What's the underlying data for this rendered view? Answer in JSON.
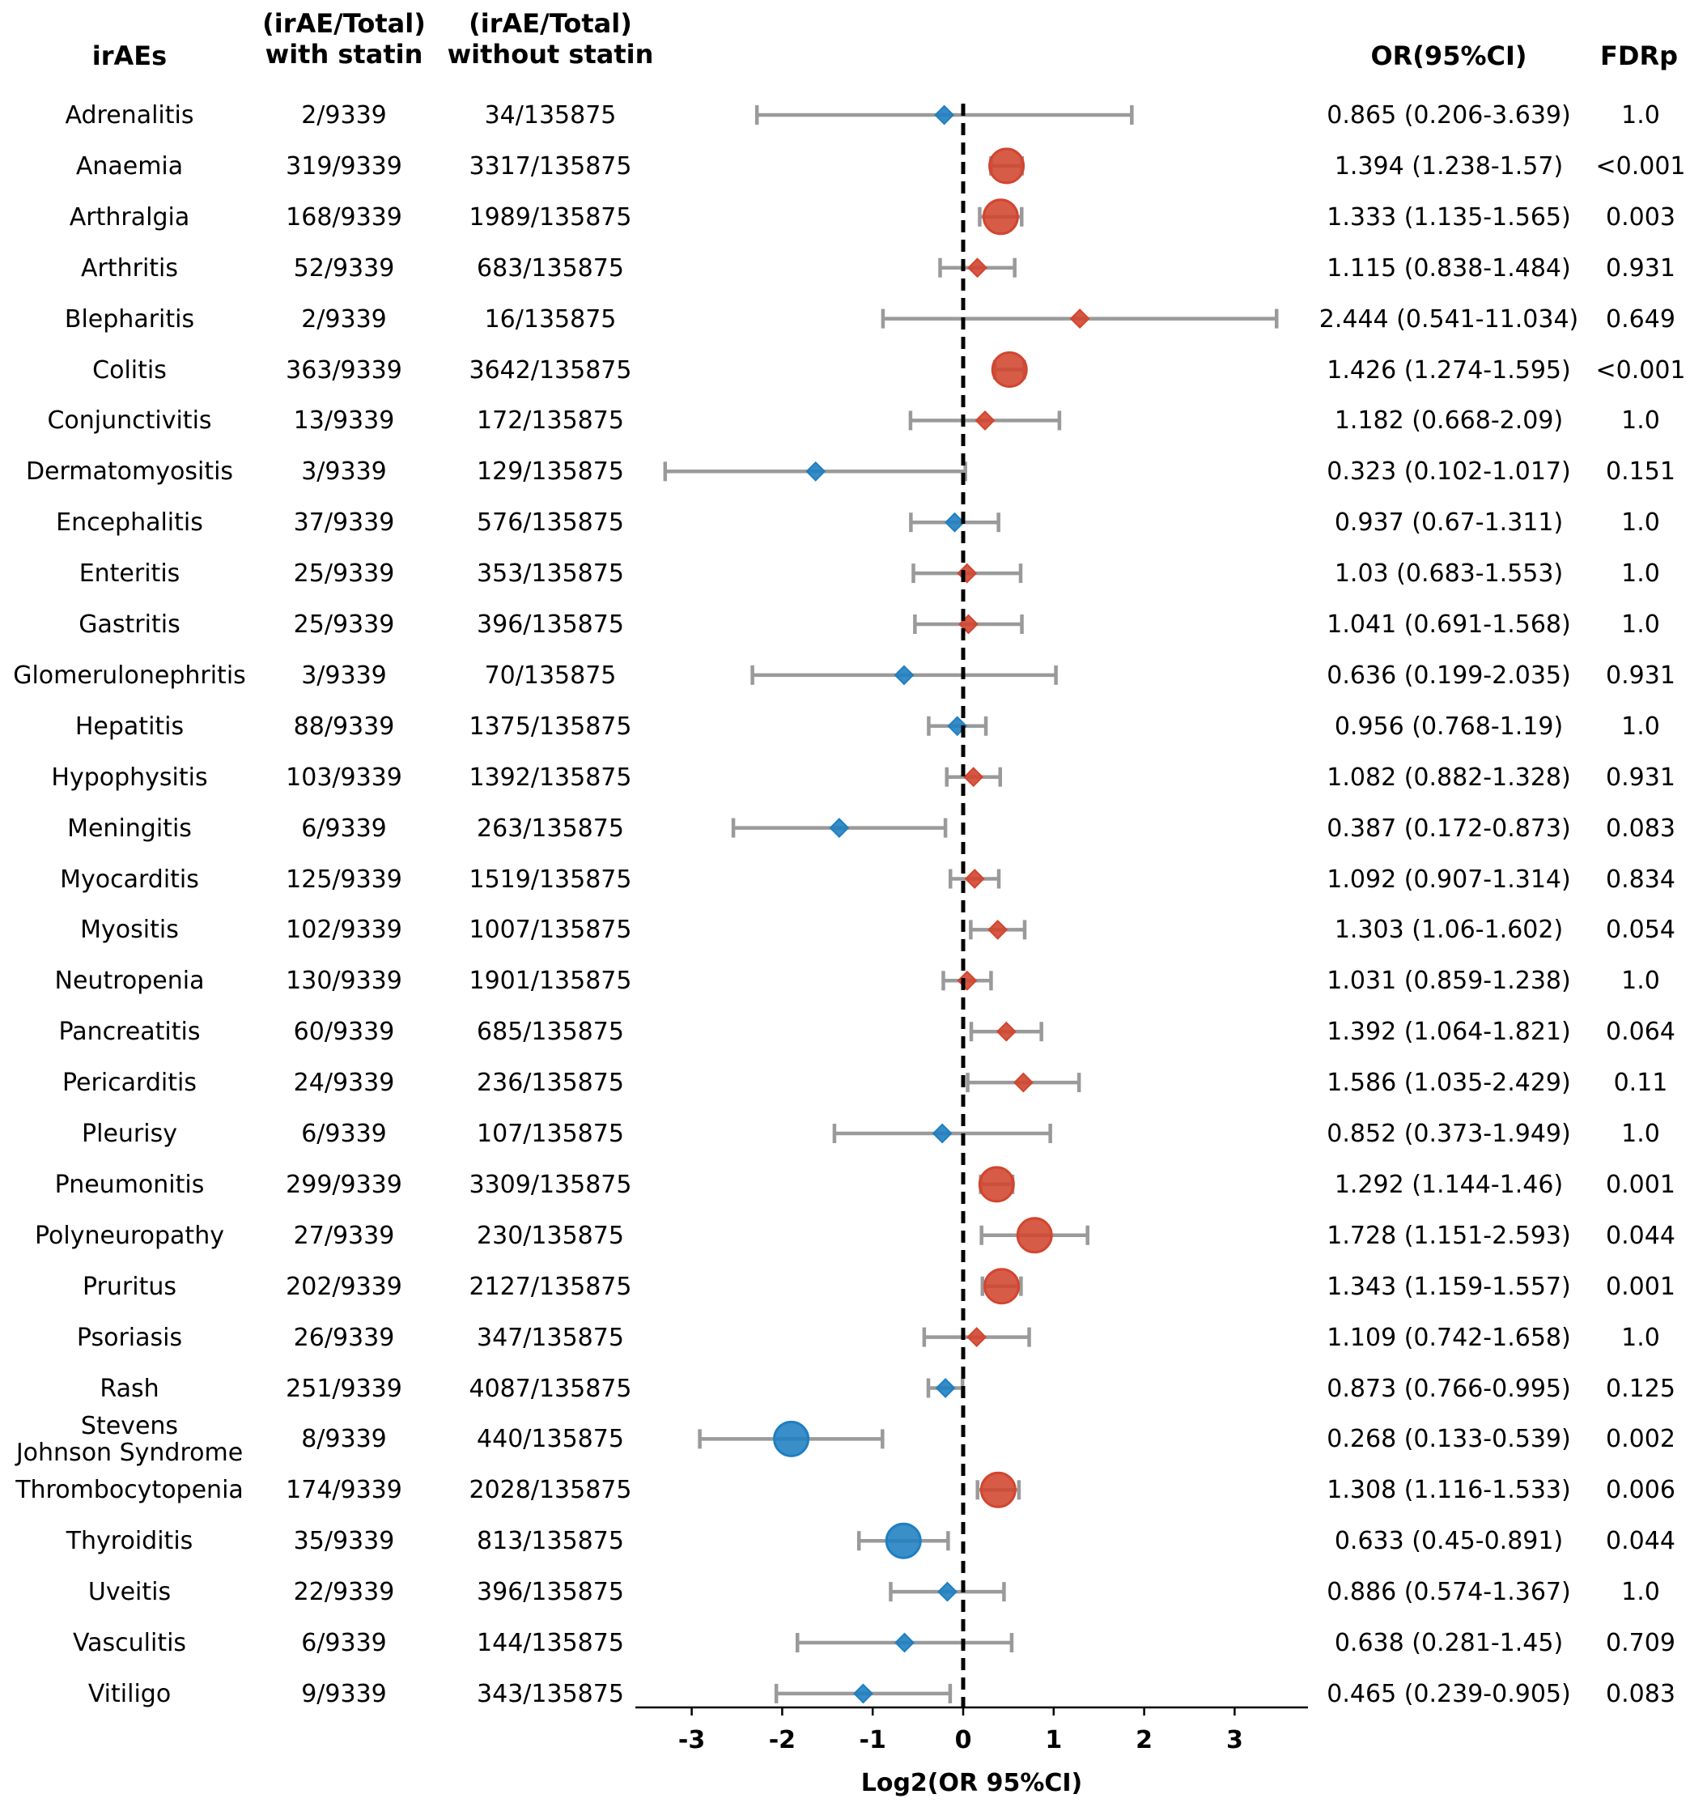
{
  "headers": {
    "irae": "irAEs",
    "with_l1": "(irAE/Total)",
    "with_l2": "with statin",
    "without_l1": "(irAE/Total)",
    "without_l2": "without statin",
    "or": "OR(95%CI)",
    "fdr": "FDRp"
  },
  "colors": {
    "increased": "#d2452f",
    "decreased": "#1f7fc1",
    "errorbar": "#9a9a9a",
    "refline": "#000000"
  },
  "chart_data": {
    "type": "forest",
    "xlabel": "Log2(OR 95%CI)",
    "xlim": [
      -3.6,
      3.8
    ],
    "xticks": [
      -3,
      -2,
      -1,
      0,
      1,
      2,
      3
    ],
    "xtick_labels": [
      "-3",
      "-2",
      "-1",
      "0",
      "1",
      "2",
      "3"
    ],
    "reference_line": 0,
    "rows": [
      {
        "name": "Adrenalitis",
        "with": "2/9339",
        "without": "34/135875",
        "or_text": "0.865 (0.206-3.639)",
        "fdr": "1.0",
        "or": 0.865,
        "lo": 0.206,
        "hi": 3.639,
        "significant": false
      },
      {
        "name": "Anaemia",
        "with": "319/9339",
        "without": "3317/135875",
        "or_text": "1.394 (1.238-1.57)",
        "fdr": "<0.001",
        "or": 1.394,
        "lo": 1.238,
        "hi": 1.57,
        "significant": true
      },
      {
        "name": "Arthralgia",
        "with": "168/9339",
        "without": "1989/135875",
        "or_text": "1.333 (1.135-1.565)",
        "fdr": "0.003",
        "or": 1.333,
        "lo": 1.135,
        "hi": 1.565,
        "significant": true
      },
      {
        "name": "Arthritis",
        "with": "52/9339",
        "without": "683/135875",
        "or_text": "1.115 (0.838-1.484)",
        "fdr": "0.931",
        "or": 1.115,
        "lo": 0.838,
        "hi": 1.484,
        "significant": false
      },
      {
        "name": "Blepharitis",
        "with": "2/9339",
        "without": "16/135875",
        "or_text": "2.444 (0.541-11.034)",
        "fdr": "0.649",
        "or": 2.444,
        "lo": 0.541,
        "hi": 11.034,
        "significant": false
      },
      {
        "name": "Colitis",
        "with": "363/9339",
        "without": "3642/135875",
        "or_text": "1.426 (1.274-1.595)",
        "fdr": "<0.001",
        "or": 1.426,
        "lo": 1.274,
        "hi": 1.595,
        "significant": true
      },
      {
        "name": "Conjunctivitis",
        "with": "13/9339",
        "without": "172/135875",
        "or_text": "1.182 (0.668-2.09)",
        "fdr": "1.0",
        "or": 1.182,
        "lo": 0.668,
        "hi": 2.09,
        "significant": false
      },
      {
        "name": "Dermatomyositis",
        "with": "3/9339",
        "without": "129/135875",
        "or_text": "0.323 (0.102-1.017)",
        "fdr": "0.151",
        "or": 0.323,
        "lo": 0.102,
        "hi": 1.017,
        "significant": false
      },
      {
        "name": "Encephalitis",
        "with": "37/9339",
        "without": "576/135875",
        "or_text": "0.937 (0.67-1.311)",
        "fdr": "1.0",
        "or": 0.937,
        "lo": 0.67,
        "hi": 1.311,
        "significant": false
      },
      {
        "name": "Enteritis",
        "with": "25/9339",
        "without": "353/135875",
        "or_text": "1.03 (0.683-1.553)",
        "fdr": "1.0",
        "or": 1.03,
        "lo": 0.683,
        "hi": 1.553,
        "significant": false
      },
      {
        "name": "Gastritis",
        "with": "25/9339",
        "without": "396/135875",
        "or_text": "1.041 (0.691-1.568)",
        "fdr": "1.0",
        "or": 1.041,
        "lo": 0.691,
        "hi": 1.568,
        "significant": false
      },
      {
        "name": "Glomerulonephritis",
        "with": "3/9339",
        "without": "70/135875",
        "or_text": "0.636 (0.199-2.035)",
        "fdr": "0.931",
        "or": 0.636,
        "lo": 0.199,
        "hi": 2.035,
        "significant": false
      },
      {
        "name": "Hepatitis",
        "with": "88/9339",
        "without": "1375/135875",
        "or_text": "0.956 (0.768-1.19)",
        "fdr": "1.0",
        "or": 0.956,
        "lo": 0.768,
        "hi": 1.19,
        "significant": false
      },
      {
        "name": "Hypophysitis",
        "with": "103/9339",
        "without": "1392/135875",
        "or_text": "1.082 (0.882-1.328)",
        "fdr": "0.931",
        "or": 1.082,
        "lo": 0.882,
        "hi": 1.328,
        "significant": false
      },
      {
        "name": "Meningitis",
        "with": "6/9339",
        "without": "263/135875",
        "or_text": "0.387 (0.172-0.873)",
        "fdr": "0.083",
        "or": 0.387,
        "lo": 0.172,
        "hi": 0.873,
        "significant": false
      },
      {
        "name": "Myocarditis",
        "with": "125/9339",
        "without": "1519/135875",
        "or_text": "1.092 (0.907-1.314)",
        "fdr": "0.834",
        "or": 1.092,
        "lo": 0.907,
        "hi": 1.314,
        "significant": false
      },
      {
        "name": "Myositis",
        "with": "102/9339",
        "without": "1007/135875",
        "or_text": "1.303 (1.06-1.602)",
        "fdr": "0.054",
        "or": 1.303,
        "lo": 1.06,
        "hi": 1.602,
        "significant": false
      },
      {
        "name": "Neutropenia",
        "with": "130/9339",
        "without": "1901/135875",
        "or_text": "1.031 (0.859-1.238)",
        "fdr": "1.0",
        "or": 1.031,
        "lo": 0.859,
        "hi": 1.238,
        "significant": false
      },
      {
        "name": "Pancreatitis",
        "with": "60/9339",
        "without": "685/135875",
        "or_text": "1.392 (1.064-1.821)",
        "fdr": "0.064",
        "or": 1.392,
        "lo": 1.064,
        "hi": 1.821,
        "significant": false
      },
      {
        "name": "Pericarditis",
        "with": "24/9339",
        "without": "236/135875",
        "or_text": "1.586 (1.035-2.429)",
        "fdr": "0.11",
        "or": 1.586,
        "lo": 1.035,
        "hi": 2.429,
        "significant": false
      },
      {
        "name": "Pleurisy",
        "with": "6/9339",
        "without": "107/135875",
        "or_text": "0.852 (0.373-1.949)",
        "fdr": "1.0",
        "or": 0.852,
        "lo": 0.373,
        "hi": 1.949,
        "significant": false
      },
      {
        "name": "Pneumonitis",
        "with": "299/9339",
        "without": "3309/135875",
        "or_text": "1.292 (1.144-1.46)",
        "fdr": "0.001",
        "or": 1.292,
        "lo": 1.144,
        "hi": 1.46,
        "significant": true
      },
      {
        "name": "Polyneuropathy",
        "with": "27/9339",
        "without": "230/135875",
        "or_text": "1.728 (1.151-2.593)",
        "fdr": "0.044",
        "or": 1.728,
        "lo": 1.151,
        "hi": 2.593,
        "significant": true
      },
      {
        "name": "Pruritus",
        "with": "202/9339",
        "without": "2127/135875",
        "or_text": "1.343 (1.159-1.557)",
        "fdr": "0.001",
        "or": 1.343,
        "lo": 1.159,
        "hi": 1.557,
        "significant": true
      },
      {
        "name": "Psoriasis",
        "with": "26/9339",
        "without": "347/135875",
        "or_text": "1.109 (0.742-1.658)",
        "fdr": "1.0",
        "or": 1.109,
        "lo": 0.742,
        "hi": 1.658,
        "significant": false
      },
      {
        "name": "Rash",
        "with": "251/9339",
        "without": "4087/135875",
        "or_text": "0.873 (0.766-0.995)",
        "fdr": "0.125",
        "or": 0.873,
        "lo": 0.766,
        "hi": 0.995,
        "significant": false
      },
      {
        "name": [
          "Stevens",
          "Johnson Syndrome"
        ],
        "with": "8/9339",
        "without": "440/135875",
        "or_text": "0.268 (0.133-0.539)",
        "fdr": "0.002",
        "or": 0.268,
        "lo": 0.133,
        "hi": 0.539,
        "significant": true
      },
      {
        "name": "Thrombocytopenia",
        "with": "174/9339",
        "without": "2028/135875",
        "or_text": "1.308 (1.116-1.533)",
        "fdr": "0.006",
        "or": 1.308,
        "lo": 1.116,
        "hi": 1.533,
        "significant": true
      },
      {
        "name": "Thyroiditis",
        "with": "35/9339",
        "without": "813/135875",
        "or_text": "0.633 (0.45-0.891)",
        "fdr": "0.044",
        "or": 0.633,
        "lo": 0.45,
        "hi": 0.891,
        "significant": true
      },
      {
        "name": "Uveitis",
        "with": "22/9339",
        "without": "396/135875",
        "or_text": "0.886 (0.574-1.367)",
        "fdr": "1.0",
        "or": 0.886,
        "lo": 0.574,
        "hi": 1.367,
        "significant": false
      },
      {
        "name": "Vasculitis",
        "with": "6/9339",
        "without": "144/135875",
        "or_text": "0.638 (0.281-1.45)",
        "fdr": "0.709",
        "or": 0.638,
        "lo": 0.281,
        "hi": 1.45,
        "significant": false
      },
      {
        "name": "Vitiligo",
        "with": "9/9339",
        "without": "343/135875",
        "or_text": "0.465 (0.239-0.905)",
        "fdr": "0.083",
        "or": 0.465,
        "lo": 0.239,
        "hi": 0.905,
        "significant": false
      }
    ]
  }
}
